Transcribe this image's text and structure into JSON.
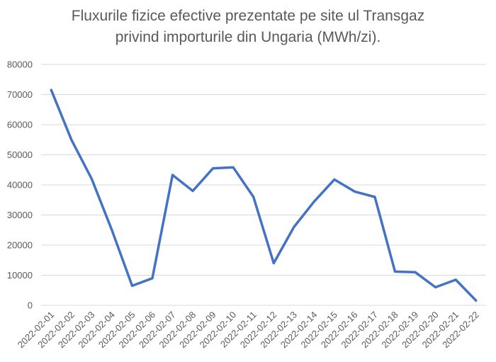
{
  "chart_data": {
    "type": "line",
    "title_lines": [
      "Fluxurile fizice efective prezentate pe site ul Transgaz",
      "privind importurile din Ungaria (MWh/zi)."
    ],
    "xlabel": "",
    "ylabel": "",
    "ylim": [
      0,
      80000
    ],
    "yticks": [
      0,
      10000,
      20000,
      30000,
      40000,
      50000,
      60000,
      70000,
      80000
    ],
    "grid": "horizontal",
    "legend": "none",
    "categories": [
      "2022-02-01",
      "2022-02-02",
      "2022-02-03",
      "2022-02-04",
      "2022-02-05",
      "2022-02-06",
      "2022-02-07",
      "2022-02-08",
      "2022-02-09",
      "2022-02-10",
      "2022-02-11",
      "2022-02-12",
      "2022-02-13",
      "2022-02-14",
      "2022-02-15",
      "2022-02-16",
      "2022-02-17",
      "2022-02-18",
      "2022-02-19",
      "2022-02-20",
      "2022-02-21",
      "2022-02-22"
    ],
    "series": [
      {
        "values": [
          71500,
          55000,
          42000,
          25000,
          6500,
          9000,
          43300,
          38000,
          45500,
          45800,
          36000,
          14000,
          26000,
          34500,
          41800,
          37800,
          36000,
          11200,
          11000,
          6000,
          8500,
          1600
        ],
        "color": "#4472c4"
      }
    ]
  }
}
